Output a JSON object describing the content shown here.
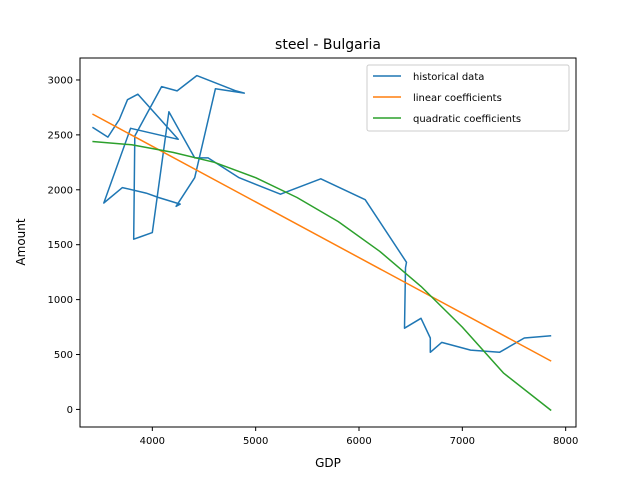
{
  "chart_data": {
    "type": "line",
    "title": "steel - Bulgaria",
    "xlabel": "GDP",
    "ylabel": "Amount",
    "xlim": [
      3300,
      8100
    ],
    "ylim": [
      -160,
      3200
    ],
    "xticks": [
      4000,
      5000,
      6000,
      7000,
      8000
    ],
    "yticks": [
      0,
      500,
      1000,
      1500,
      2000,
      2500,
      3000
    ],
    "grid": false,
    "legend_position": "top-right",
    "series": [
      {
        "name": "historical data",
        "color": "#1f77b4",
        "x": [
          3420,
          3570,
          3680,
          3760,
          3860,
          4250,
          3790,
          3530,
          3710,
          3940,
          4060,
          4270,
          4230,
          4410,
          4610,
          4890,
          4810,
          4430,
          4240,
          4090,
          3830,
          3820,
          3880,
          4000,
          4160,
          4410,
          4540,
          4840,
          5240,
          5630,
          6060,
          6460,
          6450,
          6440,
          6600,
          6690,
          6690,
          6800,
          7080,
          7360,
          7600,
          7860
        ],
        "y": [
          2570,
          2480,
          2640,
          2820,
          2870,
          2460,
          2560,
          1880,
          2020,
          1970,
          1930,
          1870,
          1850,
          2110,
          2920,
          2880,
          2900,
          3040,
          2900,
          2940,
          2490,
          1550,
          1570,
          1610,
          2710,
          2290,
          2290,
          2110,
          1960,
          2100,
          1910,
          1340,
          1290,
          740,
          830,
          650,
          520,
          610,
          540,
          520,
          650,
          670
        ]
      },
      {
        "name": "linear coefficients",
        "color": "#ff7f0e",
        "x": [
          3420,
          7860
        ],
        "y": [
          2690,
          440
        ]
      },
      {
        "name": "quadratic coefficients",
        "color": "#2ca02c",
        "x": [
          3420,
          3800,
          4200,
          4600,
          5000,
          5400,
          5800,
          6200,
          6600,
          7000,
          7400,
          7860
        ],
        "y": [
          2440,
          2410,
          2340,
          2250,
          2110,
          1930,
          1710,
          1440,
          1120,
          750,
          330,
          -10
        ]
      }
    ]
  }
}
